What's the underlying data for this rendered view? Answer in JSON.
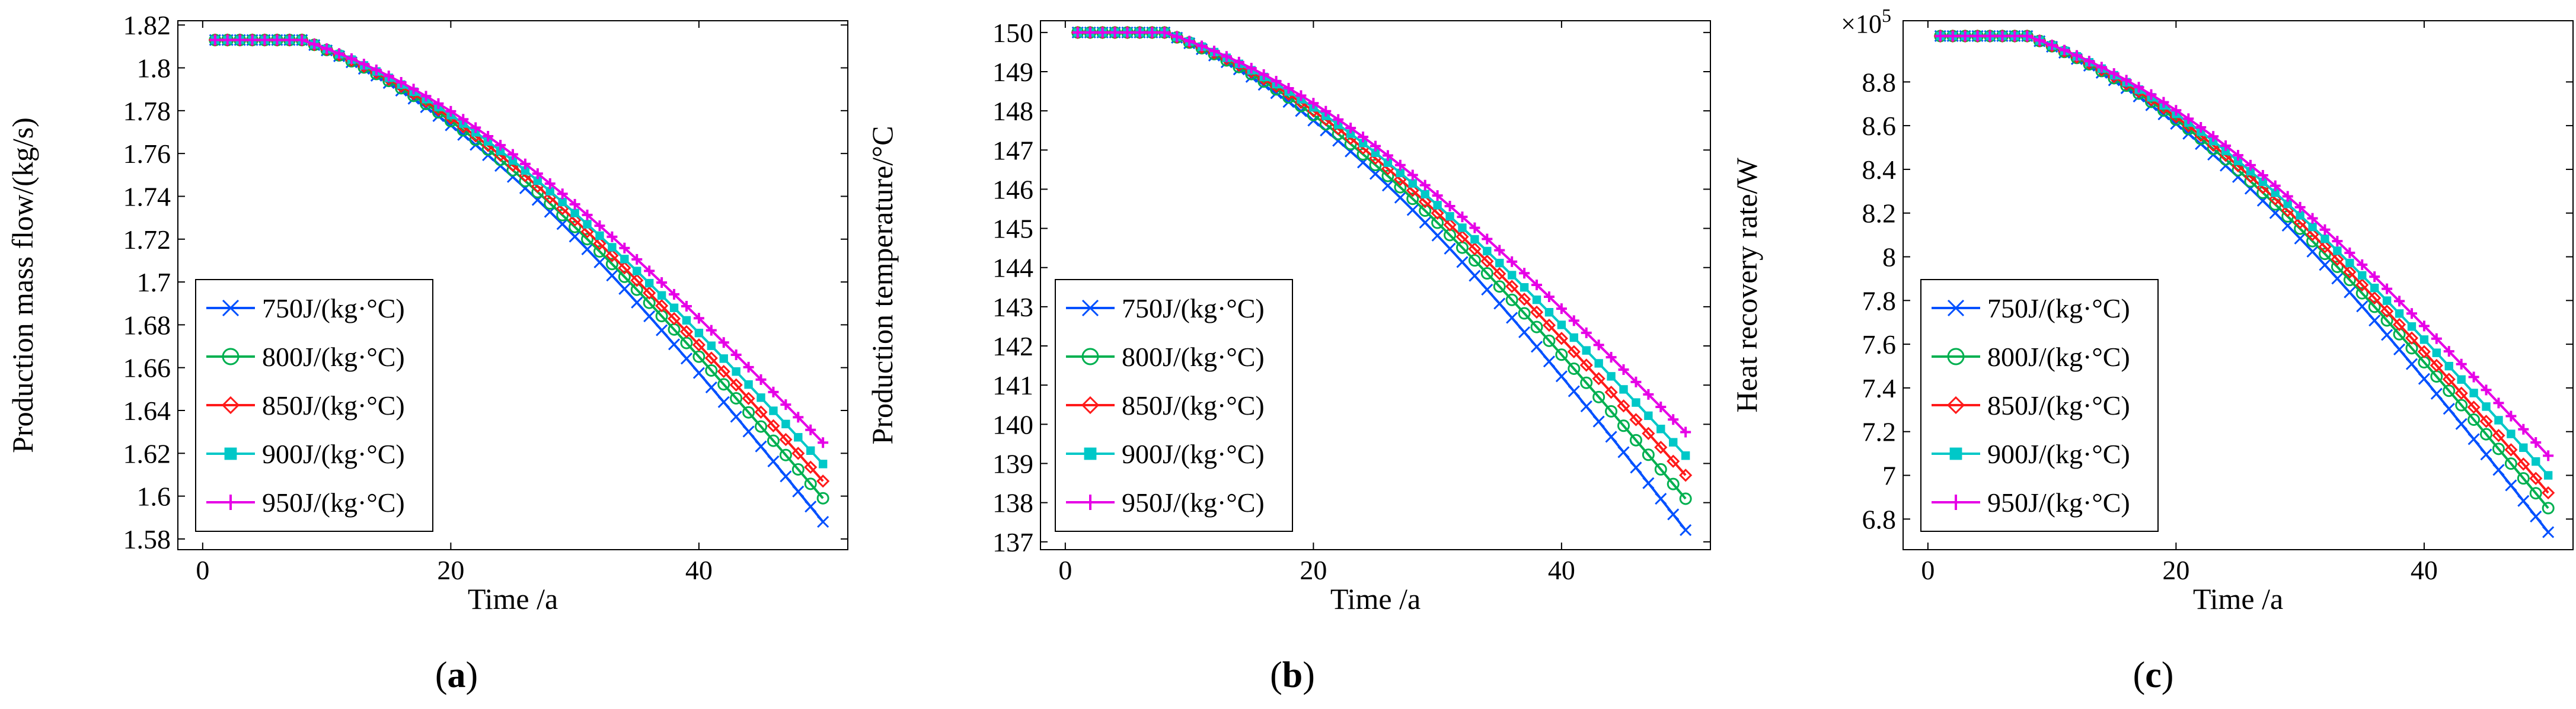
{
  "figure": {
    "legend_entries": [
      "750J/(kg·°C)",
      "800J/(kg·°C)",
      "850J/(kg·°C)",
      "900J/(kg·°C)",
      "950J/(kg·°C)"
    ],
    "series_colors": [
      "#0050ff",
      "#00b050",
      "#ff1a1a",
      "#00c8c8",
      "#e600e6"
    ],
    "series_markers": [
      "x",
      "circle",
      "diamond",
      "square",
      "plus"
    ]
  },
  "chart_data": [
    {
      "type": "line",
      "panel_label": "(a)",
      "title": "",
      "xlabel": "Time /a",
      "ylabel": "Production mass flow/(kg/s)",
      "xlim": [
        -2,
        52
      ],
      "ylim": [
        1.575,
        1.822
      ],
      "x_ticks": [
        0,
        20,
        40
      ],
      "y_ticks": [
        1.58,
        1.6,
        1.62,
        1.64,
        1.66,
        1.68,
        1.7,
        1.72,
        1.74,
        1.76,
        1.78,
        1.8,
        1.82
      ],
      "y_tick_labels": [
        "1.58",
        "1.6",
        "1.62",
        "1.64",
        "1.66",
        "1.68",
        "1.7",
        "1.72",
        "1.74",
        "1.76",
        "1.78",
        "1.8",
        "1.82"
      ],
      "exponent_label": "",
      "model": {
        "start": 1.813,
        "drop_start_year": 8,
        "scale_years": 10
      },
      "series": [
        {
          "name": "750J/(kg·°C)",
          "final_value": 1.588
        },
        {
          "name": "800J/(kg·°C)",
          "final_value": 1.599
        },
        {
          "name": "850J/(kg·°C)",
          "final_value": 1.607
        },
        {
          "name": "900J/(kg·°C)",
          "final_value": 1.615
        },
        {
          "name": "950J/(kg·°C)",
          "final_value": 1.625
        }
      ]
    },
    {
      "type": "line",
      "panel_label": "(b)",
      "title": "",
      "xlabel": "Time /a",
      "ylabel": "Production temperature/°C",
      "xlim": [
        -2,
        52
      ],
      "ylim": [
        136.8,
        150.3
      ],
      "x_ticks": [
        0,
        20,
        40
      ],
      "y_ticks": [
        137,
        138,
        139,
        140,
        141,
        142,
        143,
        144,
        145,
        146,
        147,
        148,
        149,
        150
      ],
      "y_tick_labels": [
        "137",
        "138",
        "139",
        "140",
        "141",
        "142",
        "143",
        "144",
        "145",
        "146",
        "147",
        "148",
        "149",
        "150"
      ],
      "exponent_label": "",
      "model": {
        "start": 150.0,
        "drop_start_year": 8,
        "scale_years": 10
      },
      "series": [
        {
          "name": "750J/(kg·°C)",
          "final_value": 137.3
        },
        {
          "name": "800J/(kg·°C)",
          "final_value": 138.1
        },
        {
          "name": "850J/(kg·°C)",
          "final_value": 138.7
        },
        {
          "name": "900J/(kg·°C)",
          "final_value": 139.2
        },
        {
          "name": "950J/(kg·°C)",
          "final_value": 139.8
        }
      ]
    },
    {
      "type": "line",
      "panel_label": "(c)",
      "title": "",
      "xlabel": "Time /a",
      "ylabel": "Heat recovery rate/W",
      "xlim": [
        -2,
        52
      ],
      "ylim": [
        6.66,
        9.08
      ],
      "x_ticks": [
        0,
        20,
        40
      ],
      "y_ticks": [
        6.8,
        7.0,
        7.2,
        7.4,
        7.6,
        7.8,
        8.0,
        8.2,
        8.4,
        8.6,
        8.8
      ],
      "y_tick_labels": [
        "6.8",
        "7",
        "7.2",
        "7.4",
        "7.6",
        "7.8",
        "8",
        "8.2",
        "8.4",
        "8.6",
        "8.8"
      ],
      "exponent_label": "×10",
      "exponent_power": "5",
      "model": {
        "start": 9.01,
        "drop_start_year": 8,
        "scale_years": 10
      },
      "series": [
        {
          "name": "750J/(kg·°C)",
          "final_value": 6.74
        },
        {
          "name": "800J/(kg·°C)",
          "final_value": 6.85
        },
        {
          "name": "850J/(kg·°C)",
          "final_value": 6.92
        },
        {
          "name": "900J/(kg·°C)",
          "final_value": 7.0
        },
        {
          "name": "950J/(kg·°C)",
          "final_value": 7.09
        }
      ]
    }
  ]
}
